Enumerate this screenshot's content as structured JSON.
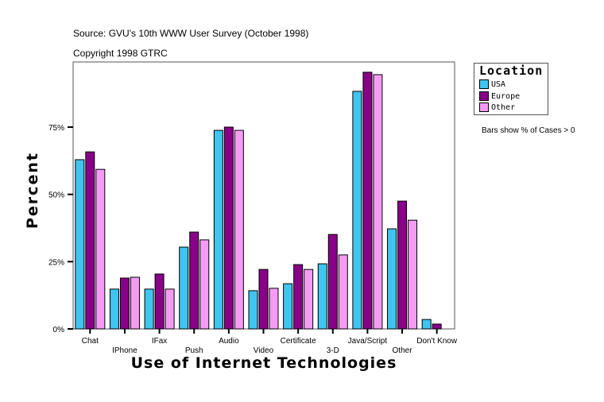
{
  "chart_data": {
    "type": "bar",
    "title": "Source: GVU's 10th WWW User Survey (October 1998)",
    "subtitle": "Copyright 1998 GTRC",
    "xlabel": "Use of Internet Technologies",
    "ylabel": "Percent",
    "ylim": [
      0,
      100
    ],
    "yticks": [
      "0%",
      "25%",
      "50%",
      "75%"
    ],
    "ytick_values": [
      0,
      25,
      50,
      75
    ],
    "grid": false,
    "legend_title": "Location",
    "legend_position": "right",
    "note": "Bars show % of Cases > 0",
    "categories": [
      "Chat",
      "IPhone",
      "IFax",
      "Push",
      "Audio",
      "Video",
      "Certificate",
      "3-D",
      "Java/Script",
      "Other",
      "Don't Know"
    ],
    "series": [
      {
        "name": "USA",
        "color": "#40C4F0",
        "values": [
          62.9,
          14.8,
          14.8,
          30.4,
          73.8,
          14.2,
          16.8,
          24.2,
          88.3,
          37.2,
          3.5
        ]
      },
      {
        "name": "Europe",
        "color": "#880088",
        "values": [
          65.8,
          18.9,
          20.4,
          36.0,
          75.0,
          22.1,
          23.9,
          35.1,
          95.4,
          47.5,
          1.8
        ]
      },
      {
        "name": "Other",
        "color": "#F49CF4",
        "values": [
          59.3,
          19.2,
          14.8,
          33.1,
          73.8,
          15.1,
          22.1,
          27.5,
          94.5,
          40.4,
          0
        ]
      }
    ]
  }
}
